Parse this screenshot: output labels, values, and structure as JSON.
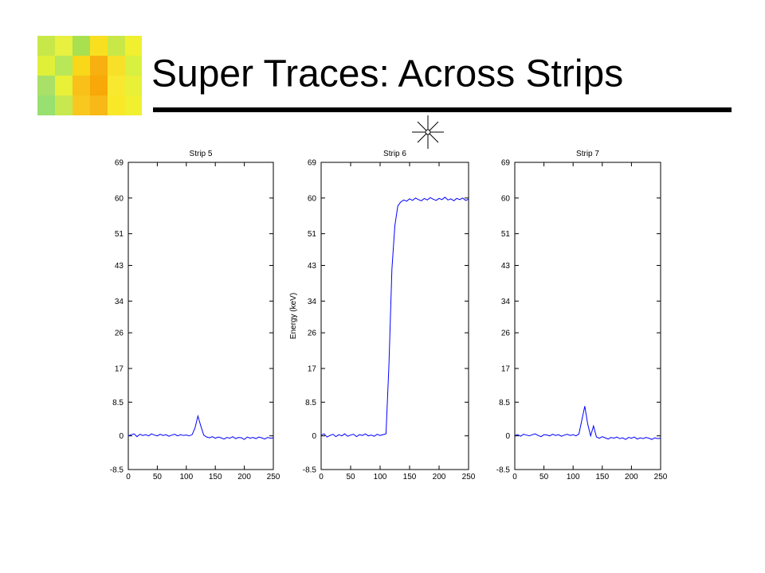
{
  "title": "Super Traces: Across Strips",
  "chart_data": [
    {
      "type": "line",
      "title": "Strip 5",
      "color": "#0000ff",
      "xlim": [
        0,
        250
      ],
      "xticks": [
        0,
        50,
        100,
        150,
        200,
        250
      ],
      "ylim": [
        -8.5,
        69
      ],
      "yticks": [
        -8.5,
        0,
        8.5,
        17,
        26,
        34,
        43,
        51,
        60,
        69
      ],
      "x": [
        0,
        5,
        10,
        15,
        20,
        25,
        30,
        35,
        40,
        45,
        50,
        55,
        60,
        65,
        70,
        75,
        80,
        85,
        90,
        95,
        100,
        105,
        110,
        115,
        120,
        125,
        130,
        135,
        140,
        145,
        150,
        155,
        160,
        165,
        170,
        175,
        180,
        185,
        190,
        195,
        200,
        205,
        210,
        215,
        220,
        225,
        230,
        235,
        240,
        245,
        250
      ],
      "values": [
        0,
        0.3,
        0.5,
        -0.2,
        0.4,
        0.1,
        0.3,
        0,
        0.5,
        0.2,
        0,
        0.4,
        0.1,
        0.3,
        -0.1,
        0.2,
        0.4,
        0,
        0.3,
        0.1,
        0.2,
        0,
        0.3,
        2,
        5,
        2.5,
        0.2,
        -0.3,
        -0.5,
        -0.2,
        -0.6,
        -0.3,
        -0.5,
        -0.8,
        -0.4,
        -0.6,
        -0.2,
        -0.7,
        -0.4,
        -0.5,
        -0.9,
        -0.3,
        -0.6,
        -0.4,
        -0.7,
        -0.3,
        -0.5,
        -0.8,
        -0.4,
        -0.6,
        -0.5
      ]
    },
    {
      "type": "line",
      "title": "Strip 6",
      "ylabel": "Energy (keV)",
      "color": "#0000ff",
      "xlim": [
        0,
        250
      ],
      "xticks": [
        0,
        50,
        100,
        150,
        200,
        250
      ],
      "ylim": [
        -8.5,
        69
      ],
      "yticks": [
        -8.5,
        0,
        8.5,
        17,
        26,
        34,
        43,
        51,
        60,
        69
      ],
      "x": [
        0,
        5,
        10,
        15,
        20,
        25,
        30,
        35,
        40,
        45,
        50,
        55,
        60,
        65,
        70,
        75,
        80,
        85,
        90,
        95,
        100,
        105,
        110,
        115,
        120,
        125,
        130,
        135,
        140,
        145,
        150,
        155,
        160,
        165,
        170,
        175,
        180,
        185,
        190,
        195,
        200,
        205,
        210,
        215,
        220,
        225,
        230,
        235,
        240,
        245,
        250
      ],
      "values": [
        0.2,
        0.5,
        -0.3,
        0.1,
        0.4,
        -0.2,
        0.3,
        0,
        0.5,
        -0.1,
        0.2,
        0.4,
        -0.2,
        0.3,
        0.1,
        0.5,
        0,
        0.2,
        -0.1,
        0.4,
        0.1,
        0.3,
        0.5,
        18,
        42,
        53,
        58,
        59,
        59.5,
        59.2,
        59.8,
        59.4,
        60,
        59.6,
        59.3,
        59.9,
        59.5,
        60.1,
        59.7,
        59.4,
        59.9,
        59.6,
        60.2,
        59.5,
        59.8,
        59.3,
        59.9,
        59.6,
        60,
        59.4,
        59.7
      ]
    },
    {
      "type": "line",
      "title": "Strip 7",
      "color": "#0000ff",
      "xlim": [
        0,
        250
      ],
      "xticks": [
        0,
        50,
        100,
        150,
        200,
        250
      ],
      "ylim": [
        -8.5,
        69
      ],
      "yticks": [
        -8.5,
        0,
        8.5,
        17,
        26,
        34,
        43,
        51,
        60,
        69
      ],
      "x": [
        0,
        5,
        10,
        15,
        20,
        25,
        30,
        35,
        40,
        45,
        50,
        55,
        60,
        65,
        70,
        75,
        80,
        85,
        90,
        95,
        100,
        105,
        110,
        115,
        120,
        125,
        130,
        135,
        140,
        145,
        150,
        155,
        160,
        165,
        170,
        175,
        180,
        185,
        190,
        195,
        200,
        205,
        210,
        215,
        220,
        225,
        230,
        235,
        240,
        245,
        250
      ],
      "values": [
        0.1,
        0.3,
        -0.1,
        0.4,
        0.2,
        0,
        0.3,
        0.5,
        0.1,
        -0.2,
        0.3,
        0.2,
        0,
        0.4,
        0.1,
        0.3,
        -0.1,
        0.2,
        0.4,
        0.1,
        0.3,
        0,
        0.5,
        4,
        7.5,
        3,
        0,
        2.5,
        -0.3,
        -0.6,
        -0.2,
        -0.5,
        -0.8,
        -0.4,
        -0.6,
        -0.3,
        -0.7,
        -0.5,
        -0.9,
        -0.4,
        -0.6,
        -0.3,
        -0.8,
        -0.5,
        -0.7,
        -0.4,
        -0.6,
        -0.9,
        -0.5,
        -0.7,
        -0.6
      ]
    }
  ]
}
